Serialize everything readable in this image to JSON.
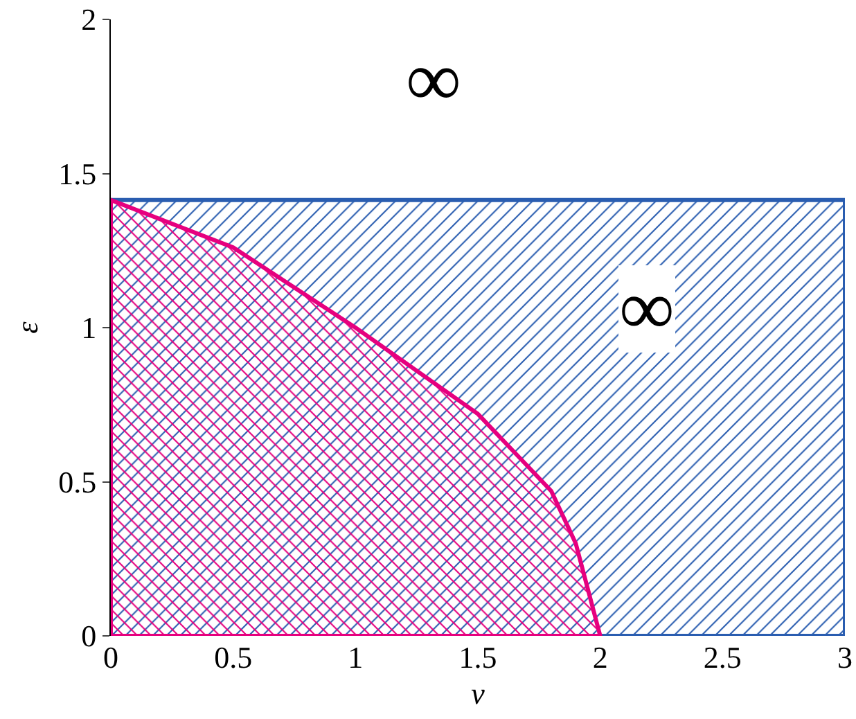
{
  "chart_data": {
    "type": "area",
    "xlabel": "v",
    "ylabel": "ε",
    "xlim": [
      0,
      3
    ],
    "ylim": [
      0,
      2
    ],
    "xticks": [
      0,
      0.5,
      1,
      1.5,
      2,
      2.5,
      3
    ],
    "yticks": [
      0,
      0.5,
      1,
      1.5,
      2
    ],
    "grid": false,
    "series": [
      {
        "color": "#2a5db0",
        "x": [
          0,
          0,
          3,
          3,
          0
        ],
        "values": [
          0,
          1.414,
          1.414,
          0,
          0
        ]
      },
      {
        "color": "#e6007e",
        "x": [
          0,
          0,
          0.5,
          1,
          1.5,
          1.8,
          1.9,
          2,
          0
        ],
        "values": [
          0,
          1.414,
          1.26,
          1.0,
          0.72,
          0.47,
          0.3,
          0,
          0
        ]
      }
    ],
    "annotations": [
      "∞",
      "∞"
    ]
  }
}
